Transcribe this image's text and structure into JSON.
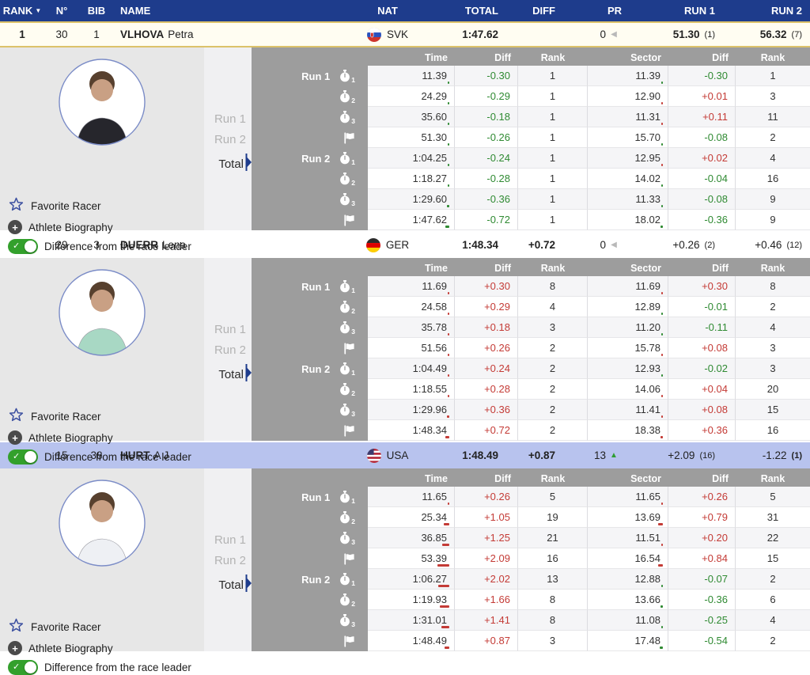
{
  "colors": {
    "header_blue": "#1e3c8c",
    "green": "#2f8a32",
    "red": "#c43b36",
    "leader_gold": "#dcc26a",
    "selected_row": "#b8c3ee"
  },
  "header": {
    "cols": [
      "RANK",
      "N°",
      "BIB",
      "NAME",
      "NAT",
      "TOTAL",
      "DIFF",
      "PR",
      "RUN 1",
      "RUN 2"
    ],
    "sort_icon": "▼"
  },
  "detail_ui": {
    "run1_tab": "Run 1",
    "run2_tab": "Run 2",
    "total_tab": "Total",
    "favorite": "Favorite Racer",
    "biography": "Athlete Biography",
    "diff_toggle": "Difference from the race leader",
    "table_headers": [
      "Time",
      "Diff",
      "Rank",
      "Sector",
      "Diff",
      "Rank"
    ],
    "checkpoints": [
      "1",
      "2",
      "3",
      "F",
      "1",
      "2",
      "3",
      "F"
    ],
    "run_labels": {
      "0": "Run 1",
      "4": "Run 2"
    }
  },
  "racers": [
    {
      "rank": "1",
      "n": "30",
      "bib": "1",
      "name_last": "VLHOVA",
      "name_first": "Petra",
      "nat": "SVK",
      "flag": "SVK",
      "row_style": "leader",
      "avatar_color": "#26262c",
      "total": "1:47.62",
      "diff": "",
      "pr": {
        "v": "0",
        "arrow": "left"
      },
      "run1": {
        "v": "51.30",
        "note": "(1)",
        "vb": true,
        "nb": false
      },
      "run2": {
        "v": "56.32",
        "note": "(7)",
        "vb": true,
        "nb": false
      },
      "splits": [
        {
          "time": "11.39",
          "diff": "-0.30",
          "rank": "1",
          "sector": "11.39",
          "sdiff": "-0.30",
          "srank": "1"
        },
        {
          "time": "24.29",
          "diff": "-0.29",
          "rank": "1",
          "sector": "12.90",
          "sdiff": "+0.01",
          "srank": "3"
        },
        {
          "time": "35.60",
          "diff": "-0.18",
          "rank": "1",
          "sector": "11.31",
          "sdiff": "+0.11",
          "srank": "11"
        },
        {
          "time": "51.30",
          "diff": "-0.26",
          "rank": "1",
          "sector": "15.70",
          "sdiff": "-0.08",
          "srank": "2"
        },
        {
          "time": "1:04.25",
          "diff": "-0.24",
          "rank": "1",
          "sector": "12.95",
          "sdiff": "+0.02",
          "srank": "4"
        },
        {
          "time": "1:18.27",
          "diff": "-0.28",
          "rank": "1",
          "sector": "14.02",
          "sdiff": "-0.04",
          "srank": "16"
        },
        {
          "time": "1:29.60",
          "diff": "-0.36",
          "rank": "1",
          "sector": "11.33",
          "sdiff": "-0.08",
          "srank": "9"
        },
        {
          "time": "1:47.62",
          "diff": "-0.72",
          "rank": "1",
          "sector": "18.02",
          "sdiff": "-0.36",
          "srank": "9"
        }
      ]
    },
    {
      "rank": "2",
      "n": "29",
      "bib": "3",
      "name_last": "DUERR",
      "name_first": "Lena",
      "nat": "GER",
      "flag": "GER",
      "row_style": "plain",
      "avatar_color": "#a8d8c4",
      "total": "1:48.34",
      "diff": "+0.72",
      "pr": {
        "v": "0",
        "arrow": "left"
      },
      "run1": {
        "v": "+0.26",
        "note": "(2)",
        "vb": false,
        "nb": false
      },
      "run2": {
        "v": "+0.46",
        "note": "(12)",
        "vb": false,
        "nb": false
      },
      "splits": [
        {
          "time": "11.69",
          "diff": "+0.30",
          "rank": "8",
          "sector": "11.69",
          "sdiff": "+0.30",
          "srank": "8"
        },
        {
          "time": "24.58",
          "diff": "+0.29",
          "rank": "4",
          "sector": "12.89",
          "sdiff": "-0.01",
          "srank": "2"
        },
        {
          "time": "35.78",
          "diff": "+0.18",
          "rank": "3",
          "sector": "11.20",
          "sdiff": "-0.11",
          "srank": "4"
        },
        {
          "time": "51.56",
          "diff": "+0.26",
          "rank": "2",
          "sector": "15.78",
          "sdiff": "+0.08",
          "srank": "3"
        },
        {
          "time": "1:04.49",
          "diff": "+0.24",
          "rank": "2",
          "sector": "12.93",
          "sdiff": "-0.02",
          "srank": "3"
        },
        {
          "time": "1:18.55",
          "diff": "+0.28",
          "rank": "2",
          "sector": "14.06",
          "sdiff": "+0.04",
          "srank": "20"
        },
        {
          "time": "1:29.96",
          "diff": "+0.36",
          "rank": "2",
          "sector": "11.41",
          "sdiff": "+0.08",
          "srank": "15"
        },
        {
          "time": "1:48.34",
          "diff": "+0.72",
          "rank": "2",
          "sector": "18.38",
          "sdiff": "+0.36",
          "srank": "16"
        }
      ]
    },
    {
      "rank": "3",
      "n": "15",
      "bib": "38",
      "name_last": "HURT",
      "name_first": "A J",
      "nat": "USA",
      "flag": "USA",
      "row_style": "selected",
      "avatar_color": "#eef0f4",
      "total": "1:48.49",
      "diff": "+0.87",
      "pr": {
        "v": "13",
        "arrow": "up"
      },
      "run1": {
        "v": "+2.09",
        "note": "(16)",
        "vb": false,
        "nb": false
      },
      "run2": {
        "v": "-1.22",
        "note": "(1)",
        "vb": false,
        "nb": true
      },
      "splits": [
        {
          "time": "11.65",
          "diff": "+0.26",
          "rank": "5",
          "sector": "11.65",
          "sdiff": "+0.26",
          "srank": "5"
        },
        {
          "time": "25.34",
          "diff": "+1.05",
          "rank": "19",
          "sector": "13.69",
          "sdiff": "+0.79",
          "srank": "31"
        },
        {
          "time": "36.85",
          "diff": "+1.25",
          "rank": "21",
          "sector": "11.51",
          "sdiff": "+0.20",
          "srank": "22"
        },
        {
          "time": "53.39",
          "diff": "+2.09",
          "rank": "16",
          "sector": "16.54",
          "sdiff": "+0.84",
          "srank": "15"
        },
        {
          "time": "1:06.27",
          "diff": "+2.02",
          "rank": "13",
          "sector": "12.88",
          "sdiff": "-0.07",
          "srank": "2"
        },
        {
          "time": "1:19.93",
          "diff": "+1.66",
          "rank": "8",
          "sector": "13.66",
          "sdiff": "-0.36",
          "srank": "6"
        },
        {
          "time": "1:31.01",
          "diff": "+1.41",
          "rank": "8",
          "sector": "11.08",
          "sdiff": "-0.25",
          "srank": "4"
        },
        {
          "time": "1:48.49",
          "diff": "+0.87",
          "rank": "3",
          "sector": "17.48",
          "sdiff": "-0.54",
          "srank": "2"
        }
      ]
    }
  ]
}
